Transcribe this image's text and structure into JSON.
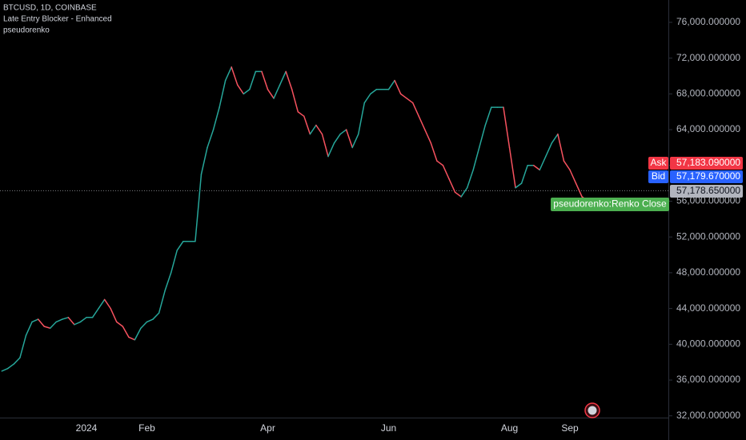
{
  "chart_data": {
    "type": "line",
    "title": "BTCUSD, 1D, COINBASE",
    "indicators": [
      "Late Entry Blocker - Enhanced",
      "pseudorenko"
    ],
    "categories": [
      null,
      null,
      null,
      null,
      null,
      null,
      null,
      null,
      null,
      null,
      null,
      null,
      null,
      null,
      "2024",
      null,
      null,
      null,
      null,
      null,
      null,
      null,
      null,
      null,
      "Feb",
      null,
      null,
      null,
      null,
      null,
      null,
      null,
      null,
      null,
      null,
      null,
      null,
      null,
      null,
      null,
      null,
      null,
      null,
      null,
      "Apr",
      null,
      null,
      null,
      null,
      null,
      null,
      null,
      null,
      null,
      null,
      null,
      null,
      null,
      null,
      null,
      null,
      null,
      null,
      null,
      "Jun",
      null,
      null,
      null,
      null,
      null,
      null,
      null,
      null,
      null,
      null,
      null,
      null,
      null,
      null,
      null,
      null,
      null,
      null,
      null,
      "Aug",
      null,
      null,
      null,
      null,
      null,
      null,
      null,
      null,
      null,
      "Sep",
      null,
      null,
      null
    ],
    "series": [
      {
        "name": "pseudorenko:Renko Close",
        "up_color": "#26a69a",
        "down_color": "#f7525f",
        "values": [
          37000,
          37300,
          37800,
          38500,
          41000,
          42500,
          42800,
          42000,
          41800,
          42500,
          42800,
          43000,
          42200,
          42500,
          43000,
          43000,
          44000,
          45000,
          44000,
          42500,
          42000,
          40800,
          40500,
          41800,
          42500,
          42800,
          43500,
          46000,
          48000,
          50500,
          51500,
          51500,
          51500,
          59000,
          62000,
          64000,
          66500,
          69500,
          71000,
          69000,
          68000,
          68500,
          70500,
          70500,
          68500,
          67500,
          69000,
          70500,
          68500,
          66000,
          65500,
          63500,
          64500,
          63500,
          61000,
          62500,
          63500,
          64000,
          62000,
          63500,
          67000,
          68000,
          68500,
          68500,
          68500,
          69500,
          68000,
          67500,
          67000,
          65500,
          64000,
          62500,
          60500,
          60000,
          58500,
          57000,
          56500,
          57500,
          59500,
          62000,
          64500,
          66500,
          66500,
          66500,
          62000,
          57500,
          58000,
          60000,
          60000,
          59500,
          61000,
          62500,
          63500,
          60500,
          59500,
          58000,
          56500,
          56000
        ]
      }
    ],
    "ylim": [
      31800,
      78500
    ],
    "yticks": [
      {
        "value": 32000,
        "label": "32,000.000000"
      },
      {
        "value": 36000,
        "label": "36,000.000000"
      },
      {
        "value": 40000,
        "label": "40,000.000000"
      },
      {
        "value": 44000,
        "label": "44,000.000000"
      },
      {
        "value": 48000,
        "label": "48,000.000000"
      },
      {
        "value": 52000,
        "label": "52,000.000000"
      },
      {
        "value": 56000,
        "label": "56,000.000000"
      },
      {
        "value": 60000,
        "label": "60,000.000000"
      },
      {
        "value": 64000,
        "label": "64,000.000000"
      },
      {
        "value": 68000,
        "label": "68,000.000000"
      },
      {
        "value": 72000,
        "label": "72,000.000000"
      },
      {
        "value": 76000,
        "label": "76,000.000000"
      }
    ],
    "grid": false,
    "price_labels": [
      {
        "name": "Ask",
        "value": 57183.09,
        "label": "57,183.090000",
        "color": "#f23645"
      },
      {
        "name": "Bid",
        "value": 57179.67,
        "label": "57,179.670000",
        "color": "#2962ff"
      }
    ],
    "last_price": {
      "value": 57178.65,
      "label": "57,178.650000"
    }
  }
}
